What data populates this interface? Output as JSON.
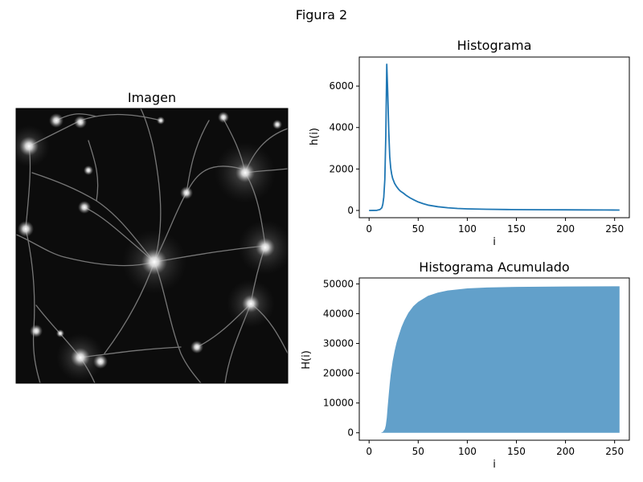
{
  "figure": {
    "title": "Figura 2"
  },
  "image_panel": {
    "title": "Imagen",
    "content": "grayscale fluorescence micrograph of neurons"
  },
  "chart_data": [
    {
      "type": "line",
      "title": "Histograma",
      "xlabel": "i",
      "ylabel": "h(i)",
      "color": "#1f77b4",
      "xlim": [
        -10,
        265
      ],
      "ylim": [
        -350,
        7400
      ],
      "xticks": [
        0,
        50,
        100,
        150,
        200,
        250
      ],
      "yticks": [
        0,
        2000,
        4000,
        6000
      ],
      "grid": false,
      "x": [
        0,
        8,
        11,
        13,
        14,
        15,
        16,
        17,
        18,
        19,
        20,
        21,
        22,
        23,
        24,
        26,
        28,
        30,
        32,
        35,
        38,
        42,
        46,
        50,
        55,
        60,
        70,
        80,
        90,
        100,
        120,
        140,
        160,
        180,
        200,
        220,
        240,
        255
      ],
      "y": [
        0,
        5,
        40,
        130,
        300,
        650,
        1500,
        3600,
        7050,
        5700,
        3800,
        2600,
        2050,
        1750,
        1550,
        1300,
        1150,
        1020,
        930,
        830,
        720,
        600,
        500,
        410,
        330,
        260,
        180,
        130,
        95,
        75,
        55,
        45,
        38,
        32,
        28,
        25,
        22,
        20
      ]
    },
    {
      "type": "area",
      "title": "Histograma Acumulado",
      "xlabel": "i",
      "ylabel": "H(i)",
      "color": "#1f77b4",
      "alpha": 0.7,
      "xlim": [
        -10,
        265
      ],
      "ylim": [
        -2500,
        52000
      ],
      "xticks": [
        0,
        50,
        100,
        150,
        200,
        250
      ],
      "yticks": [
        0,
        10000,
        20000,
        30000,
        40000,
        50000
      ],
      "grid": false,
      "x": [
        12,
        14,
        16,
        17,
        18,
        19,
        20,
        21,
        22,
        24,
        26,
        28,
        30,
        33,
        36,
        40,
        45,
        50,
        60,
        70,
        80,
        100,
        120,
        150,
        200,
        255
      ],
      "y": [
        0,
        300,
        1200,
        2500,
        5000,
        9000,
        13000,
        16500,
        19500,
        24000,
        27500,
        30300,
        32500,
        35500,
        37800,
        40300,
        42500,
        44000,
        46000,
        47100,
        47800,
        48500,
        48800,
        49000,
        49150,
        49200
      ]
    }
  ]
}
